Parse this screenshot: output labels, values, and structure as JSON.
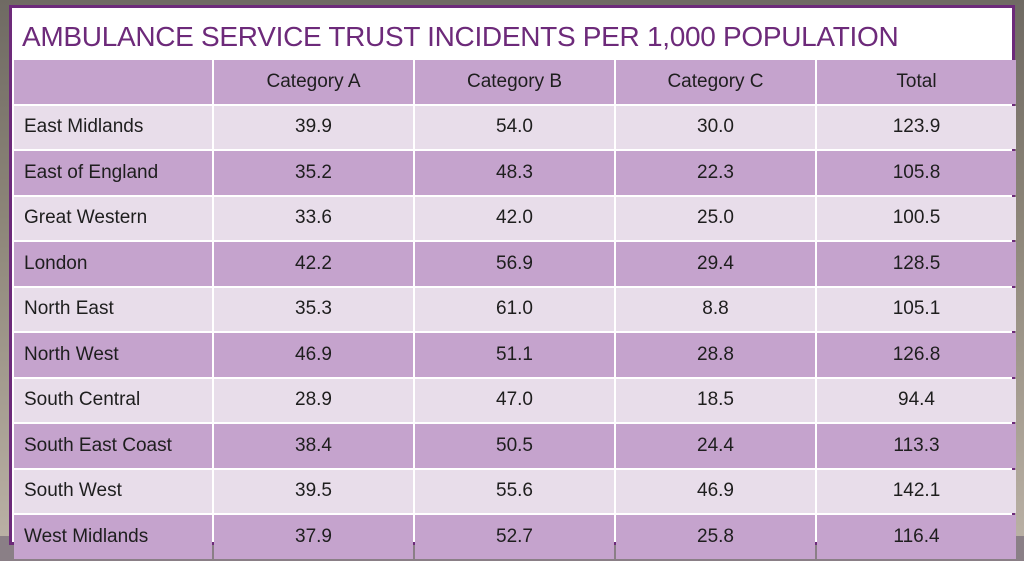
{
  "chart_data": {
    "type": "table",
    "title": "AMBULANCE SERVICE TRUST INCIDENTS PER 1,000 POPULATION",
    "columns": [
      "",
      "Category A",
      "Category B",
      "Category C",
      "Total"
    ],
    "rows": [
      {
        "region": "East Midlands",
        "values": [
          "39.9",
          "54.0",
          "30.0",
          "123.9"
        ]
      },
      {
        "region": "East of England",
        "values": [
          "35.2",
          "48.3",
          "22.3",
          "105.8"
        ]
      },
      {
        "region": "Great Western",
        "values": [
          "33.6",
          "42.0",
          "25.0",
          "100.5"
        ]
      },
      {
        "region": "London",
        "values": [
          "42.2",
          "56.9",
          "29.4",
          "128.5"
        ]
      },
      {
        "region": "North East",
        "values": [
          "35.3",
          "61.0",
          "8.8",
          "105.1"
        ]
      },
      {
        "region": "North West",
        "values": [
          "46.9",
          "51.1",
          "28.8",
          "126.8"
        ]
      },
      {
        "region": "South Central",
        "values": [
          "28.9",
          "47.0",
          "18.5",
          "94.4"
        ]
      },
      {
        "region": "South East Coast",
        "values": [
          "38.4",
          "50.5",
          "24.4",
          "113.3"
        ]
      },
      {
        "region": "South West",
        "values": [
          "39.5",
          "55.6",
          "46.9",
          "142.1"
        ]
      },
      {
        "region": "West Midlands",
        "values": [
          "37.9",
          "52.7",
          "25.8",
          "116.4"
        ]
      }
    ],
    "colors": {
      "title": "#6d2a7a",
      "border": "#6d2a7a",
      "row_light": "#e8ddea",
      "row_dark": "#c5a3cd"
    }
  }
}
